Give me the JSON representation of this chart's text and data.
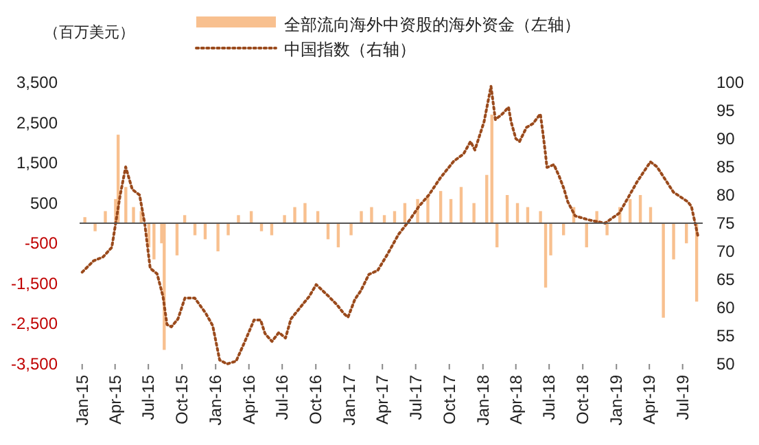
{
  "chart_data": {
    "type": "bar",
    "ylabel": "（百万美元）",
    "legend": "top",
    "line_style": "dotted",
    "xlim": [
      "2014-12-25",
      "2019-08-25"
    ],
    "xticks": [
      {
        "value": "2015-01-01",
        "label": "Jan-15"
      },
      {
        "value": "2015-04-01",
        "label": "Apr-15"
      },
      {
        "value": "2015-07-01",
        "label": "Jul-15"
      },
      {
        "value": "2015-10-01",
        "label": "Oct-15"
      },
      {
        "value": "2016-01-01",
        "label": "Jan-16"
      },
      {
        "value": "2016-04-01",
        "label": "Apr-16"
      },
      {
        "value": "2016-07-01",
        "label": "Jul-16"
      },
      {
        "value": "2016-10-01",
        "label": "Oct-16"
      },
      {
        "value": "2017-01-01",
        "label": "Jan-17"
      },
      {
        "value": "2017-04-01",
        "label": "Apr-17"
      },
      {
        "value": "2017-07-01",
        "label": "Jul-17"
      },
      {
        "value": "2017-10-01",
        "label": "Oct-17"
      },
      {
        "value": "2018-01-01",
        "label": "Jan-18"
      },
      {
        "value": "2018-04-01",
        "label": "Apr-18"
      },
      {
        "value": "2018-07-01",
        "label": "Jul-18"
      },
      {
        "value": "2018-10-01",
        "label": "Oct-18"
      },
      {
        "value": "2019-01-01",
        "label": "Jan-19"
      },
      {
        "value": "2019-04-01",
        "label": "Apr-19"
      },
      {
        "value": "2019-07-01",
        "label": "Jul-19"
      }
    ],
    "ylim": [
      -3500,
      3500
    ],
    "yticks": [
      {
        "value": -3500,
        "label": "-3,500"
      },
      {
        "value": -2500,
        "label": "-2,500"
      },
      {
        "value": -1500,
        "label": "-1,500"
      },
      {
        "value": -500,
        "label": "-500"
      },
      {
        "value": 500,
        "label": "500"
      },
      {
        "value": 1500,
        "label": "1,500"
      },
      {
        "value": 2500,
        "label": "2,500"
      },
      {
        "value": 3500,
        "label": "3,500"
      }
    ],
    "y2lim": [
      50,
      100
    ],
    "y2ticks": [
      50,
      55,
      60,
      65,
      70,
      75,
      80,
      85,
      90,
      95,
      100
    ],
    "series": [
      {
        "name": "全部流向海外中资股的海外资金（左轴）",
        "color": "#f8c08f",
        "x": [
          "2015-01-08",
          "2015-02-05",
          "2015-03-05",
          "2015-04-02",
          "2015-04-09",
          "2015-04-30",
          "2015-05-21",
          "2015-06-11",
          "2015-07-02",
          "2015-07-16",
          "2015-08-06",
          "2015-08-13",
          "2015-09-17",
          "2015-10-08",
          "2015-11-05",
          "2015-12-03",
          "2016-01-07",
          "2016-02-04",
          "2016-03-03",
          "2016-04-07",
          "2016-05-05",
          "2016-06-02",
          "2016-07-07",
          "2016-08-04",
          "2016-09-01",
          "2016-10-06",
          "2016-11-03",
          "2016-12-01",
          "2017-01-05",
          "2017-02-02",
          "2017-03-02",
          "2017-04-06",
          "2017-05-04",
          "2017-06-01",
          "2017-07-06",
          "2017-08-03",
          "2017-09-07",
          "2017-10-05",
          "2017-11-02",
          "2017-12-07",
          "2018-01-11",
          "2018-01-25",
          "2018-02-08",
          "2018-03-08",
          "2018-04-05",
          "2018-05-03",
          "2018-06-07",
          "2018-06-21",
          "2018-07-05",
          "2018-08-09",
          "2018-09-06",
          "2018-10-11",
          "2018-11-08",
          "2018-12-06",
          "2019-01-10",
          "2019-02-07",
          "2019-03-07",
          "2019-04-04",
          "2019-05-09",
          "2019-06-06",
          "2019-07-11",
          "2019-08-08"
        ],
        "values": [
          150,
          -200,
          300,
          600,
          2200,
          900,
          400,
          300,
          -600,
          -900,
          -500,
          -3150,
          -800,
          200,
          -300,
          -400,
          -700,
          -300,
          200,
          300,
          -200,
          -300,
          200,
          400,
          500,
          300,
          -400,
          -600,
          -300,
          300,
          400,
          200,
          300,
          500,
          600,
          700,
          800,
          600,
          900,
          500,
          1200,
          2700,
          -600,
          700,
          500,
          400,
          300,
          -1600,
          -800,
          -300,
          400,
          -600,
          300,
          -300,
          400,
          600,
          700,
          400,
          -2350,
          -900,
          -500,
          -1950
        ]
      },
      {
        "name": "中国指数（右轴）",
        "type": "line",
        "axis": "y2",
        "color": "#9a4a1c",
        "x": [
          "2015-01-01",
          "2015-02-01",
          "2015-02-27",
          "2015-03-23",
          "2015-04-15",
          "2015-04-30",
          "2015-05-18",
          "2015-06-07",
          "2015-06-21",
          "2015-07-06",
          "2015-07-25",
          "2015-08-10",
          "2015-08-21",
          "2015-09-02",
          "2015-09-20",
          "2015-10-09",
          "2015-11-05",
          "2015-12-05",
          "2015-12-24",
          "2016-01-12",
          "2016-02-01",
          "2016-02-26",
          "2016-03-19",
          "2016-04-15",
          "2016-05-03",
          "2016-05-15",
          "2016-06-03",
          "2016-06-22",
          "2016-07-10",
          "2016-07-25",
          "2016-08-25",
          "2016-09-13",
          "2016-10-02",
          "2016-11-02",
          "2016-11-28",
          "2016-12-16",
          "2016-12-28",
          "2017-01-16",
          "2017-02-01",
          "2017-02-23",
          "2017-03-19",
          "2017-04-15",
          "2017-05-15",
          "2017-06-15",
          "2017-07-10",
          "2017-08-06",
          "2017-09-06",
          "2017-10-13",
          "2017-11-09",
          "2017-11-28",
          "2017-12-10",
          "2018-01-04",
          "2018-01-23",
          "2018-02-04",
          "2018-02-23",
          "2018-03-12",
          "2018-03-19",
          "2018-04-01",
          "2018-04-11",
          "2018-04-30",
          "2018-05-18",
          "2018-06-07",
          "2018-06-14",
          "2018-06-21",
          "2018-06-25",
          "2018-07-14",
          "2018-07-28",
          "2018-08-10",
          "2018-08-21",
          "2018-09-10",
          "2018-10-16",
          "2018-12-01",
          "2019-01-09",
          "2019-02-27",
          "2019-04-04",
          "2019-04-22",
          "2019-06-06",
          "2019-07-15",
          "2019-07-25",
          "2019-08-13"
        ],
        "values": [
          66.3,
          68.3,
          69,
          70.7,
          80,
          85,
          81,
          80,
          75,
          67,
          66,
          62,
          57,
          56.6,
          58,
          61.7,
          61.7,
          59,
          56.8,
          50.7,
          50,
          50.5,
          53.7,
          57.8,
          57.8,
          55.4,
          54,
          55.6,
          54.6,
          58,
          60.5,
          62,
          64.1,
          62.2,
          60.5,
          59,
          58.3,
          61.5,
          63,
          65.9,
          66.6,
          69.5,
          73,
          75.6,
          78,
          80,
          83,
          86,
          87.3,
          89.5,
          88,
          93,
          99.3,
          93.4,
          94.4,
          95.6,
          93,
          90,
          89.5,
          92,
          92.7,
          94.4,
          91,
          87.3,
          84.9,
          85.4,
          83.4,
          81.2,
          78.8,
          76.3,
          75.6,
          75,
          76.8,
          82.4,
          85.9,
          85,
          80.5,
          78.8,
          78,
          72.4
        ]
      }
    ]
  }
}
